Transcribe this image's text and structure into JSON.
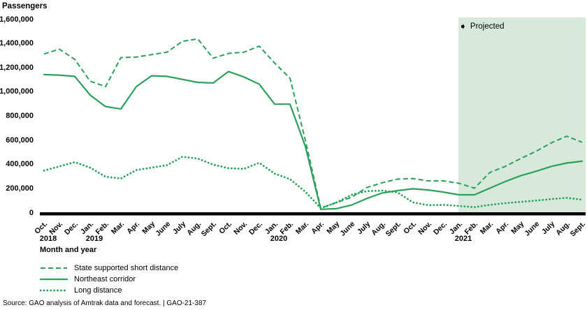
{
  "title": "Passengers",
  "projected": {
    "label": "Projected"
  },
  "icons": {
    "projected_arrow": "➧"
  },
  "source": "Source: GAO analysis of Amtrak data and forecast.  |  GAO-21-387",
  "colors": {
    "line_green": "#2aa05a",
    "projected_bg": "#d6e9db",
    "axis_black": "#000000",
    "text_black": "#000000"
  },
  "chart_data": {
    "type": "line",
    "title": "Passengers",
    "xlabel": "Month and year",
    "ylim": [
      0,
      1600000
    ],
    "grid": false,
    "legend_position": "bottom-left",
    "y_ticks": [
      "0",
      "200,000",
      "400,000",
      "600,000",
      "800,000",
      "1,000,000",
      "1,200,000",
      "1,400,000",
      "1,600,000"
    ],
    "months": [
      "Oct.",
      "Nov.",
      "Dec.",
      "Jan.",
      "Feb.",
      "Mar.",
      "Apr.",
      "May",
      "June",
      "July",
      "Aug.",
      "Sept.",
      "Oct.",
      "Nov.",
      "Dec.",
      "Jan.",
      "Feb.",
      "Mar.",
      "Apr.",
      "May",
      "June",
      "July",
      "Aug.",
      "Sept.",
      "Oct.",
      "Nov.",
      "Dec.",
      "Jan.",
      "Feb.",
      "Mar.",
      "Apr.",
      "May",
      "June",
      "July",
      "Aug.",
      "Sept."
    ],
    "years": [
      {
        "label": "2018",
        "month_index": 0
      },
      {
        "label": "2019",
        "month_index": 3
      },
      {
        "label": "2020",
        "month_index": 15
      },
      {
        "label": "2021",
        "month_index": 27
      }
    ],
    "projected_start_month_index": 27,
    "series": [
      {
        "name": "State supported short distance",
        "style": "dashed",
        "values": [
          1315000,
          1355000,
          1270000,
          1090000,
          1045000,
          1285000,
          1290000,
          1310000,
          1330000,
          1420000,
          1440000,
          1280000,
          1320000,
          1330000,
          1380000,
          1240000,
          1115000,
          600000,
          40000,
          85000,
          130000,
          210000,
          250000,
          280000,
          285000,
          265000,
          265000,
          245000,
          205000,
          335000,
          385000,
          450000,
          510000,
          580000,
          635000,
          585000
        ]
      },
      {
        "name": "Northeast corridor",
        "style": "solid",
        "values": [
          1145000,
          1140000,
          1130000,
          975000,
          880000,
          860000,
          1045000,
          1135000,
          1130000,
          1105000,
          1080000,
          1075000,
          1170000,
          1125000,
          1065000,
          900000,
          900000,
          550000,
          30000,
          35000,
          65000,
          120000,
          165000,
          185000,
          200000,
          190000,
          172000,
          150000,
          150000,
          205000,
          260000,
          308000,
          345000,
          385000,
          413000,
          428000
        ]
      },
      {
        "name": "Long distance",
        "style": "dotted",
        "values": [
          350000,
          385000,
          420000,
          375000,
          300000,
          285000,
          355000,
          375000,
          395000,
          465000,
          450000,
          400000,
          370000,
          365000,
          415000,
          325000,
          280000,
          175000,
          40000,
          85000,
          150000,
          180000,
          185000,
          170000,
          87000,
          64000,
          67000,
          58000,
          48000,
          67000,
          81000,
          92000,
          102000,
          115000,
          125000,
          110000
        ]
      }
    ]
  }
}
